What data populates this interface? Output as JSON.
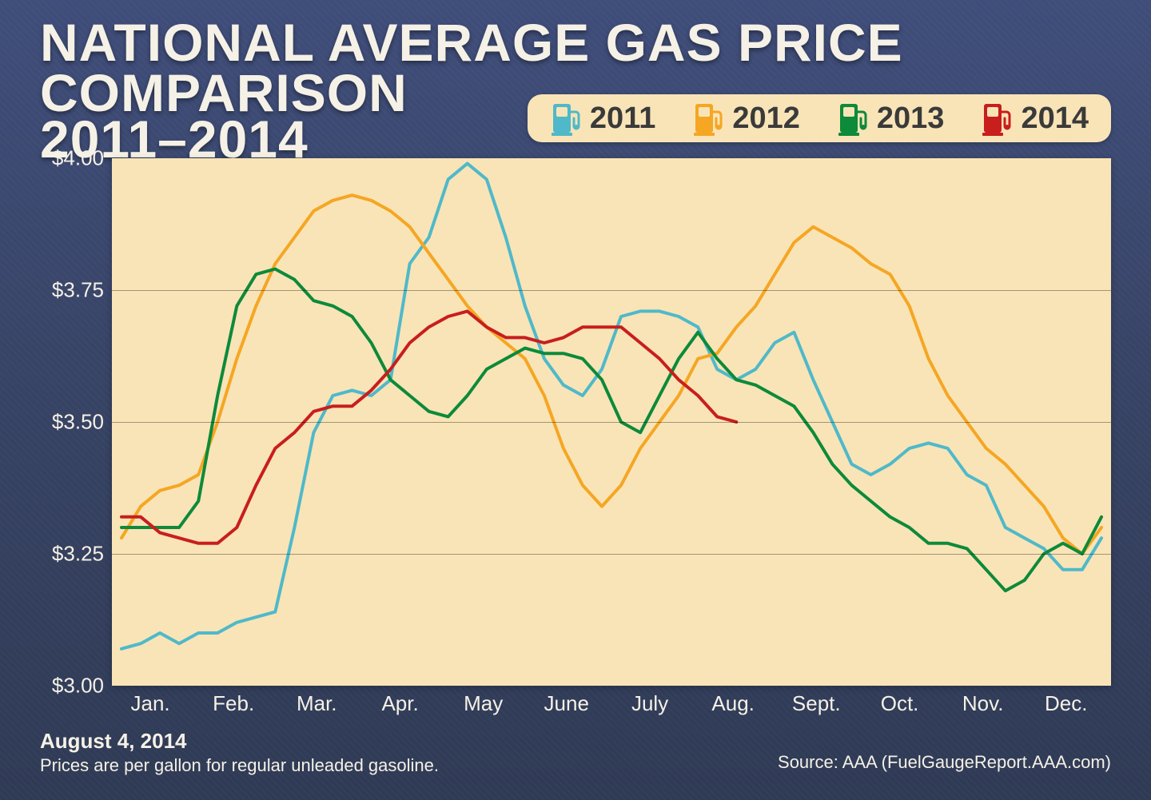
{
  "title": {
    "line1": "NATIONAL AVERAGE GAS PRICE COMPARISON",
    "line2": "2011–2014",
    "color": "#f5f1e6",
    "fontsize": 66
  },
  "background": {
    "gradient_top": "#3f4d7a",
    "gradient_bottom": "#2f3a55"
  },
  "legend": {
    "background": "#f9e4b7",
    "label_color": "#3a3a3a",
    "label_fontsize": 38,
    "items": [
      {
        "label": "2011",
        "color": "#4fb9c9"
      },
      {
        "label": "2012",
        "color": "#f5a623"
      },
      {
        "label": "2013",
        "color": "#0d8a3a"
      },
      {
        "label": "2014",
        "color": "#c81e1e"
      }
    ]
  },
  "chart": {
    "type": "line",
    "plot_background": "#f9e4b7",
    "grid_color": "rgba(0,0,0,0.35)",
    "line_width": 4,
    "ylim": [
      3.0,
      4.0
    ],
    "yticks": [
      3.0,
      3.25,
      3.5,
      3.75,
      4.0
    ],
    "ytick_labels": [
      "$3.00",
      "$3.25",
      "$3.50",
      "$3.75",
      "$4.00"
    ],
    "ytick_fontsize": 26,
    "xlim": [
      0,
      52
    ],
    "xtick_positions": [
      2,
      6.33,
      10.66,
      15,
      19.33,
      23.66,
      28,
      32.33,
      36.66,
      41,
      45.33,
      49.66
    ],
    "xtick_labels": [
      "Jan.",
      "Feb.",
      "Mar.",
      "Apr.",
      "May",
      "June",
      "July",
      "Aug.",
      "Sept.",
      "Oct.",
      "Nov.",
      "Dec."
    ],
    "xtick_fontsize": 26,
    "series": [
      {
        "name": "2011",
        "color": "#4fb9c9",
        "values": [
          3.07,
          3.08,
          3.1,
          3.08,
          3.1,
          3.1,
          3.12,
          3.13,
          3.14,
          3.3,
          3.48,
          3.55,
          3.56,
          3.55,
          3.58,
          3.8,
          3.85,
          3.96,
          3.99,
          3.96,
          3.85,
          3.72,
          3.62,
          3.57,
          3.55,
          3.6,
          3.7,
          3.71,
          3.71,
          3.7,
          3.68,
          3.6,
          3.58,
          3.6,
          3.65,
          3.67,
          3.58,
          3.5,
          3.42,
          3.4,
          3.42,
          3.45,
          3.46,
          3.45,
          3.4,
          3.38,
          3.3,
          3.28,
          3.26,
          3.22,
          3.22,
          3.28
        ]
      },
      {
        "name": "2012",
        "color": "#f5a623",
        "values": [
          3.28,
          3.34,
          3.37,
          3.38,
          3.4,
          3.5,
          3.62,
          3.72,
          3.8,
          3.85,
          3.9,
          3.92,
          3.93,
          3.92,
          3.9,
          3.87,
          3.82,
          3.77,
          3.72,
          3.68,
          3.65,
          3.62,
          3.55,
          3.45,
          3.38,
          3.34,
          3.38,
          3.45,
          3.5,
          3.55,
          3.62,
          3.63,
          3.68,
          3.72,
          3.78,
          3.84,
          3.87,
          3.85,
          3.83,
          3.8,
          3.78,
          3.72,
          3.62,
          3.55,
          3.5,
          3.45,
          3.42,
          3.38,
          3.34,
          3.28,
          3.25,
          3.3
        ]
      },
      {
        "name": "2013",
        "color": "#0d8a3a",
        "values": [
          3.3,
          3.3,
          3.3,
          3.3,
          3.35,
          3.55,
          3.72,
          3.78,
          3.79,
          3.77,
          3.73,
          3.72,
          3.7,
          3.65,
          3.58,
          3.55,
          3.52,
          3.51,
          3.55,
          3.6,
          3.62,
          3.64,
          3.63,
          3.63,
          3.62,
          3.58,
          3.5,
          3.48,
          3.55,
          3.62,
          3.67,
          3.62,
          3.58,
          3.57,
          3.55,
          3.53,
          3.48,
          3.42,
          3.38,
          3.35,
          3.32,
          3.3,
          3.27,
          3.27,
          3.26,
          3.22,
          3.18,
          3.2,
          3.25,
          3.27,
          3.25,
          3.32
        ]
      },
      {
        "name": "2014",
        "color": "#c81e1e",
        "values": [
          3.32,
          3.32,
          3.29,
          3.28,
          3.27,
          3.27,
          3.3,
          3.38,
          3.45,
          3.48,
          3.52,
          3.53,
          3.53,
          3.56,
          3.6,
          3.65,
          3.68,
          3.7,
          3.71,
          3.68,
          3.66,
          3.66,
          3.65,
          3.66,
          3.68,
          3.68,
          3.68,
          3.65,
          3.62,
          3.58,
          3.55,
          3.51,
          3.5
        ]
      }
    ]
  },
  "footer": {
    "date": "August 4, 2014",
    "note": "Prices are per gallon for regular unleaded gasoline.",
    "source": "Source: AAA (FuelGaugeReport.AAA.com)",
    "color": "#f5f1e6",
    "date_fontsize": 26,
    "note_fontsize": 22
  }
}
